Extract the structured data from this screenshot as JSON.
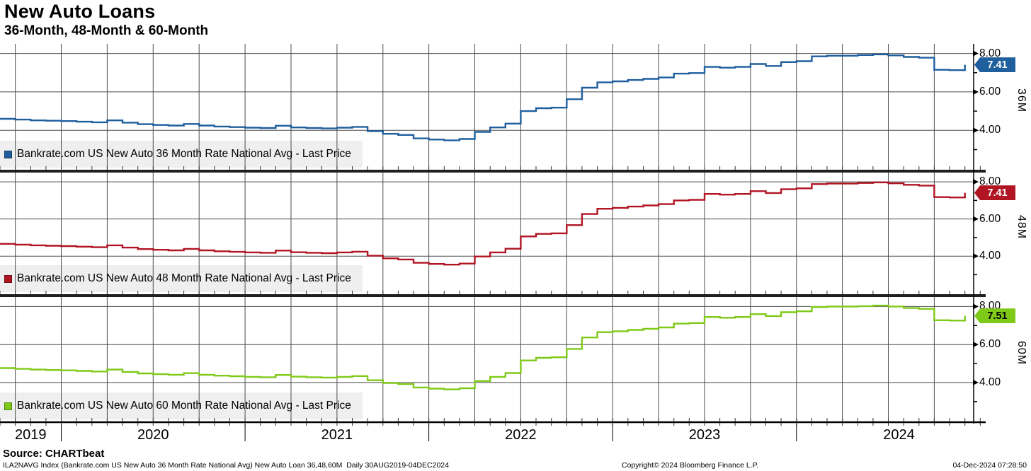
{
  "header": {
    "title": "New Auto Loans",
    "subtitle": "36-Month, 48-Month & 60-Month"
  },
  "footer": {
    "source": "Source: CHARTbeat",
    "left": "ILA2NAVG Index (Bankrate.com US New Auto 36 Month Rate National Avg) New Auto Loan 36,48,60M  Daily 30AUG2019-04DEC2024",
    "center": "Copyright© 2024 Bloomberg Finance L.P.",
    "right": "04-Dec-2024 07:28:50"
  },
  "chart_data": {
    "type": "line",
    "title": "New Auto Loans",
    "subtitle": "36-Month, 48-Month & 60-Month",
    "layout": "three stacked panels sharing one x-axis, quarterly vertical grid, y grid at 8/6/4, legend box bottom-left of each panel, last-price tag on right axis",
    "x_unit": "month",
    "x": [
      "2019-09",
      "2019-10",
      "2019-11",
      "2019-12",
      "2020-01",
      "2020-02",
      "2020-03",
      "2020-04",
      "2020-05",
      "2020-06",
      "2020-07",
      "2020-08",
      "2020-09",
      "2020-10",
      "2020-11",
      "2020-12",
      "2021-01",
      "2021-02",
      "2021-03",
      "2021-04",
      "2021-05",
      "2021-06",
      "2021-07",
      "2021-08",
      "2021-09",
      "2021-10",
      "2021-11",
      "2021-12",
      "2022-01",
      "2022-02",
      "2022-03",
      "2022-04",
      "2022-05",
      "2022-06",
      "2022-07",
      "2022-08",
      "2022-09",
      "2022-10",
      "2022-11",
      "2022-12",
      "2023-01",
      "2023-02",
      "2023-03",
      "2023-04",
      "2023-05",
      "2023-06",
      "2023-07",
      "2023-08",
      "2023-09",
      "2023-10",
      "2023-11",
      "2023-12",
      "2024-01",
      "2024-02",
      "2024-03",
      "2024-04",
      "2024-05",
      "2024-06",
      "2024-07",
      "2024-08",
      "2024-09",
      "2024-10",
      "2024-11",
      "2024-12"
    ],
    "x_year_labels": [
      "2019",
      "2020",
      "2021",
      "2022",
      "2023",
      "2024"
    ],
    "y_ticks": [
      "8.00",
      "6.00",
      "4.00"
    ],
    "y_tick_values": [
      8,
      6,
      4
    ],
    "y_minor_tick_values": [
      7,
      5,
      3
    ],
    "ylim": [
      1.95,
      8.5
    ],
    "series": [
      {
        "name": "Bankrate.com US New Auto 36 Month Rate National Avg - Last Price",
        "panel_label": "36M",
        "color": "#1f5f9e",
        "tag_text_color": "#ffffff",
        "last_price": "7.41",
        "values": [
          4.6,
          4.56,
          4.52,
          4.5,
          4.48,
          4.45,
          4.42,
          4.52,
          4.4,
          4.32,
          4.28,
          4.25,
          4.33,
          4.25,
          4.2,
          4.17,
          4.14,
          4.12,
          4.24,
          4.15,
          4.12,
          4.1,
          4.14,
          4.18,
          3.96,
          3.82,
          3.76,
          3.58,
          3.52,
          3.48,
          3.55,
          3.92,
          4.15,
          4.35,
          5.0,
          5.15,
          5.18,
          5.62,
          6.22,
          6.5,
          6.55,
          6.62,
          6.68,
          6.75,
          6.95,
          6.98,
          7.3,
          7.26,
          7.3,
          7.45,
          7.35,
          7.55,
          7.6,
          7.85,
          7.88,
          7.88,
          7.92,
          7.95,
          7.9,
          7.82,
          7.78,
          7.15,
          7.13,
          7.41
        ]
      },
      {
        "name": "Bankrate.com US New Auto 48 Month Rate National Avg - Last Price",
        "panel_label": "48M",
        "color": "#b11423",
        "tag_text_color": "#ffffff",
        "last_price": "7.41",
        "values": [
          4.66,
          4.62,
          4.58,
          4.56,
          4.54,
          4.51,
          4.48,
          4.58,
          4.46,
          4.38,
          4.34,
          4.31,
          4.39,
          4.31,
          4.26,
          4.23,
          4.2,
          4.18,
          4.3,
          4.21,
          4.18,
          4.16,
          4.2,
          4.24,
          4.02,
          3.88,
          3.82,
          3.64,
          3.58,
          3.54,
          3.6,
          3.98,
          4.2,
          4.4,
          5.06,
          5.2,
          5.23,
          5.67,
          6.27,
          6.55,
          6.6,
          6.67,
          6.73,
          6.8,
          7.0,
          7.03,
          7.35,
          7.31,
          7.35,
          7.5,
          7.4,
          7.6,
          7.65,
          7.88,
          7.91,
          7.91,
          7.94,
          7.97,
          7.92,
          7.84,
          7.8,
          7.18,
          7.16,
          7.41
        ]
      },
      {
        "name": "Bankrate.com US New Auto 60 Month Rate National Avg - Last Price",
        "panel_label": "60M",
        "color": "#7fca18",
        "tag_text_color": "#000000",
        "last_price": "7.51",
        "values": [
          4.76,
          4.72,
          4.68,
          4.66,
          4.64,
          4.61,
          4.58,
          4.68,
          4.56,
          4.48,
          4.44,
          4.41,
          4.49,
          4.41,
          4.36,
          4.33,
          4.3,
          4.28,
          4.4,
          4.31,
          4.28,
          4.26,
          4.3,
          4.34,
          4.12,
          3.98,
          3.92,
          3.74,
          3.68,
          3.64,
          3.7,
          4.08,
          4.3,
          4.5,
          5.16,
          5.3,
          5.33,
          5.77,
          6.37,
          6.65,
          6.7,
          6.77,
          6.83,
          6.9,
          7.1,
          7.13,
          7.45,
          7.41,
          7.45,
          7.6,
          7.5,
          7.7,
          7.75,
          7.97,
          8.0,
          8.0,
          8.02,
          8.05,
          8.0,
          7.92,
          7.88,
          7.28,
          7.26,
          7.51
        ]
      }
    ],
    "colors": {
      "grid": "#4d4d4d",
      "axis": "#000000",
      "panel_separator": "#1f1f1f",
      "legend_background": "#efefef"
    }
  }
}
